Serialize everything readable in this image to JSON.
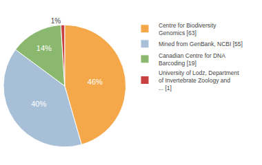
{
  "chart_data": {
    "type": "pie",
    "categories": [
      "Centre for Biodiversity\nGenomics [63]",
      "Mined from GenBank, NCBI [55]",
      "Canadian Centre for DNA\nBarcoding [19]",
      "University of Lodz, Department\nof Invertebrate Zoology and\n... [1]"
    ],
    "values": [
      46,
      40,
      14,
      1
    ],
    "value_labels": [
      "46%",
      "40%",
      "14%",
      "1%"
    ],
    "colors": [
      "#f5a84a",
      "#a8bfd8",
      "#8ab86e",
      "#c94040"
    ],
    "data_labels": true,
    "legend": "right"
  }
}
